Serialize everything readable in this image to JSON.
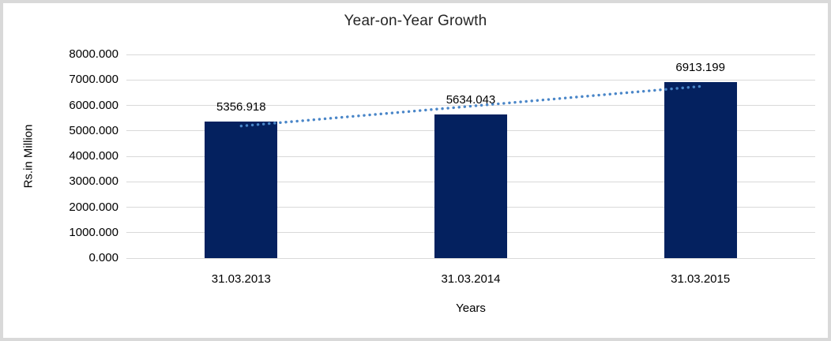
{
  "chart_data": {
    "type": "bar",
    "title": "Year-on-Year Growth",
    "xlabel": "Years",
    "ylabel": "Rs.in Million",
    "categories": [
      "31.03.2013",
      "31.03.2014",
      "31.03.2015"
    ],
    "values": [
      5356.918,
      5634.043,
      6913.199
    ],
    "data_labels": [
      "5356.918",
      "5634.043",
      "6913.199"
    ],
    "ylim": [
      0,
      8000
    ],
    "ytick_step": 1000,
    "ytick_labels": [
      "0.000",
      "1000.000",
      "2000.000",
      "3000.000",
      "4000.000",
      "5000.000",
      "6000.000",
      "7000.000",
      "8000.000"
    ],
    "grid": true,
    "legend_position": "none",
    "trendline": {
      "kind": "linear-fit",
      "style": "dotted"
    }
  },
  "colors": {
    "bar": "#04215f",
    "trendline": "#4a86c8",
    "gridline": "#d9d9d9",
    "frame_border": "#d9d9d9",
    "title_text": "#262626",
    "axis_text": "#000000",
    "background": "#ffffff"
  }
}
